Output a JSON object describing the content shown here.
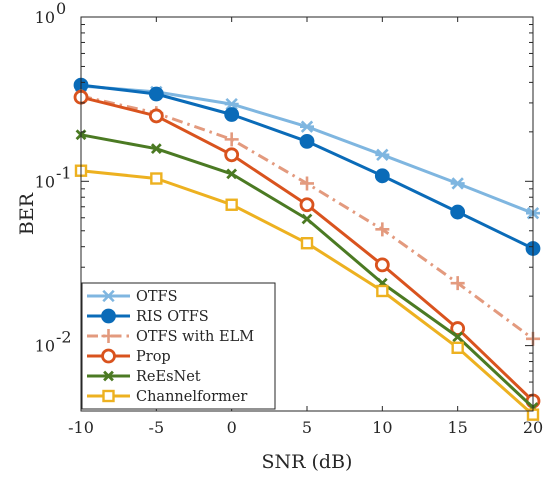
{
  "chart_data": {
    "type": "line",
    "title": "",
    "xlabel": "SNR (dB)",
    "ylabel": "BER",
    "x": [
      -10,
      -5,
      0,
      5,
      10,
      15,
      20
    ],
    "xlim": [
      -10,
      20
    ],
    "ylim": [
      0.004,
      1
    ],
    "yscale": "log",
    "grid": false,
    "legend_position": "bottom-left",
    "x_ticks": [
      {
        "value": -10,
        "label": "-10"
      },
      {
        "value": -5,
        "label": "-5"
      },
      {
        "value": 0,
        "label": "0"
      },
      {
        "value": 5,
        "label": "5"
      },
      {
        "value": 10,
        "label": "10"
      },
      {
        "value": 15,
        "label": "15"
      },
      {
        "value": 20,
        "label": "20"
      }
    ],
    "y_ticks": [
      {
        "value": 0.01,
        "base": "10",
        "exp": "-2"
      },
      {
        "value": 0.1,
        "base": "10",
        "exp": "-1"
      },
      {
        "value": 1,
        "base": "10",
        "exp": "0"
      }
    ],
    "series": [
      {
        "name": "OTFS",
        "color": "#7fb6e0",
        "marker": "asterisk",
        "dash": "solid",
        "filled": false,
        "values": [
          0.38,
          0.35,
          0.295,
          0.215,
          0.145,
          0.097,
          0.064
        ]
      },
      {
        "name": "RIS OTFS",
        "color": "#0a6bb8",
        "marker": "circle",
        "dash": "solid",
        "filled": true,
        "values": [
          0.385,
          0.34,
          0.255,
          0.175,
          0.108,
          0.065,
          0.039
        ]
      },
      {
        "name": "OTFS with ELM",
        "color": "#e39a7e",
        "marker": "plus",
        "dash": "dashdot",
        "filled": false,
        "values": [
          0.33,
          0.26,
          0.18,
          0.097,
          0.051,
          0.024,
          0.011
        ]
      },
      {
        "name": "Prop",
        "color": "#d9531e",
        "marker": "circle",
        "dash": "solid",
        "filled": false,
        "values": [
          0.325,
          0.25,
          0.145,
          0.072,
          0.031,
          0.0127,
          0.0046
        ]
      },
      {
        "name": "ReEsNet",
        "color": "#4b7a23",
        "marker": "cross",
        "dash": "solid",
        "filled": false,
        "values": [
          0.192,
          0.158,
          0.111,
          0.059,
          0.024,
          0.0113,
          0.0042
        ]
      },
      {
        "name": "Channelformer",
        "color": "#edb120",
        "marker": "square",
        "dash": "solid",
        "filled": false,
        "values": [
          0.116,
          0.104,
          0.072,
          0.042,
          0.0215,
          0.0097,
          0.0038
        ]
      }
    ]
  }
}
